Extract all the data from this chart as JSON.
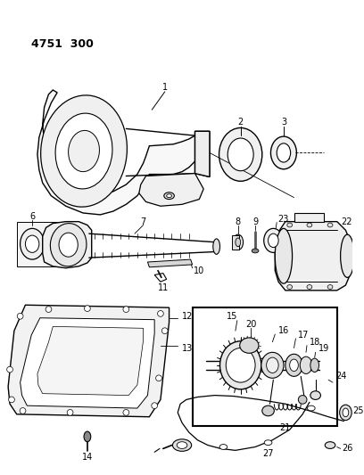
{
  "title": "4751  300",
  "bg_color": "#ffffff",
  "line_color": "#000000",
  "fig_width": 4.08,
  "fig_height": 5.33,
  "dpi": 100
}
